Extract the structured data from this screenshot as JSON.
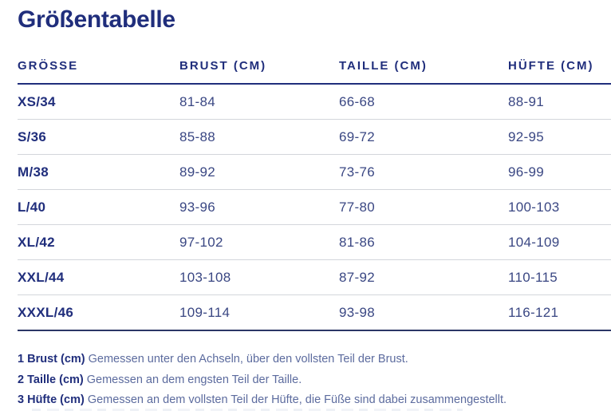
{
  "page": {
    "title": "Größentabelle"
  },
  "table": {
    "columns": {
      "size": "GRÖSSE",
      "brust": "BRUST (CM)",
      "taille": "TAILLE (CM)",
      "huefte": "HÜFTE (CM)"
    },
    "rows": [
      {
        "size": "XS/34",
        "brust": "81-84",
        "taille": "66-68",
        "huefte": "88-91"
      },
      {
        "size": "S/36",
        "brust": "85-88",
        "taille": "69-72",
        "huefte": "92-95"
      },
      {
        "size": "M/38",
        "brust": "89-92",
        "taille": "73-76",
        "huefte": "96-99"
      },
      {
        "size": "L/40",
        "brust": "93-96",
        "taille": "77-80",
        "huefte": "100-103"
      },
      {
        "size": "XL/42",
        "brust": "97-102",
        "taille": "81-86",
        "huefte": "104-109"
      },
      {
        "size": "XXL/44",
        "brust": "103-108",
        "taille": "87-92",
        "huefte": "110-115"
      },
      {
        "size": "XXXL/46",
        "brust": "109-114",
        "taille": "93-98",
        "huefte": "116-121"
      }
    ]
  },
  "notes": [
    {
      "label": "1 Brust (cm)",
      "text": "Gemessen unter den Achseln, über den vollsten Teil der Brust."
    },
    {
      "label": "2 Taille (cm)",
      "text": "Gemessen an dem engsten Teil der Taille."
    },
    {
      "label": "3 Hüfte (cm)",
      "text": "Gemessen an dem vollsten Teil der Hüfte, die Füße sind dabei zusammengestellt."
    }
  ],
  "colors": {
    "brand_navy": "#202e7c",
    "value_text": "#3a4783",
    "note_text": "#5c6b9e",
    "row_divider": "#d3d6db",
    "header_rule": "#202e7c"
  }
}
